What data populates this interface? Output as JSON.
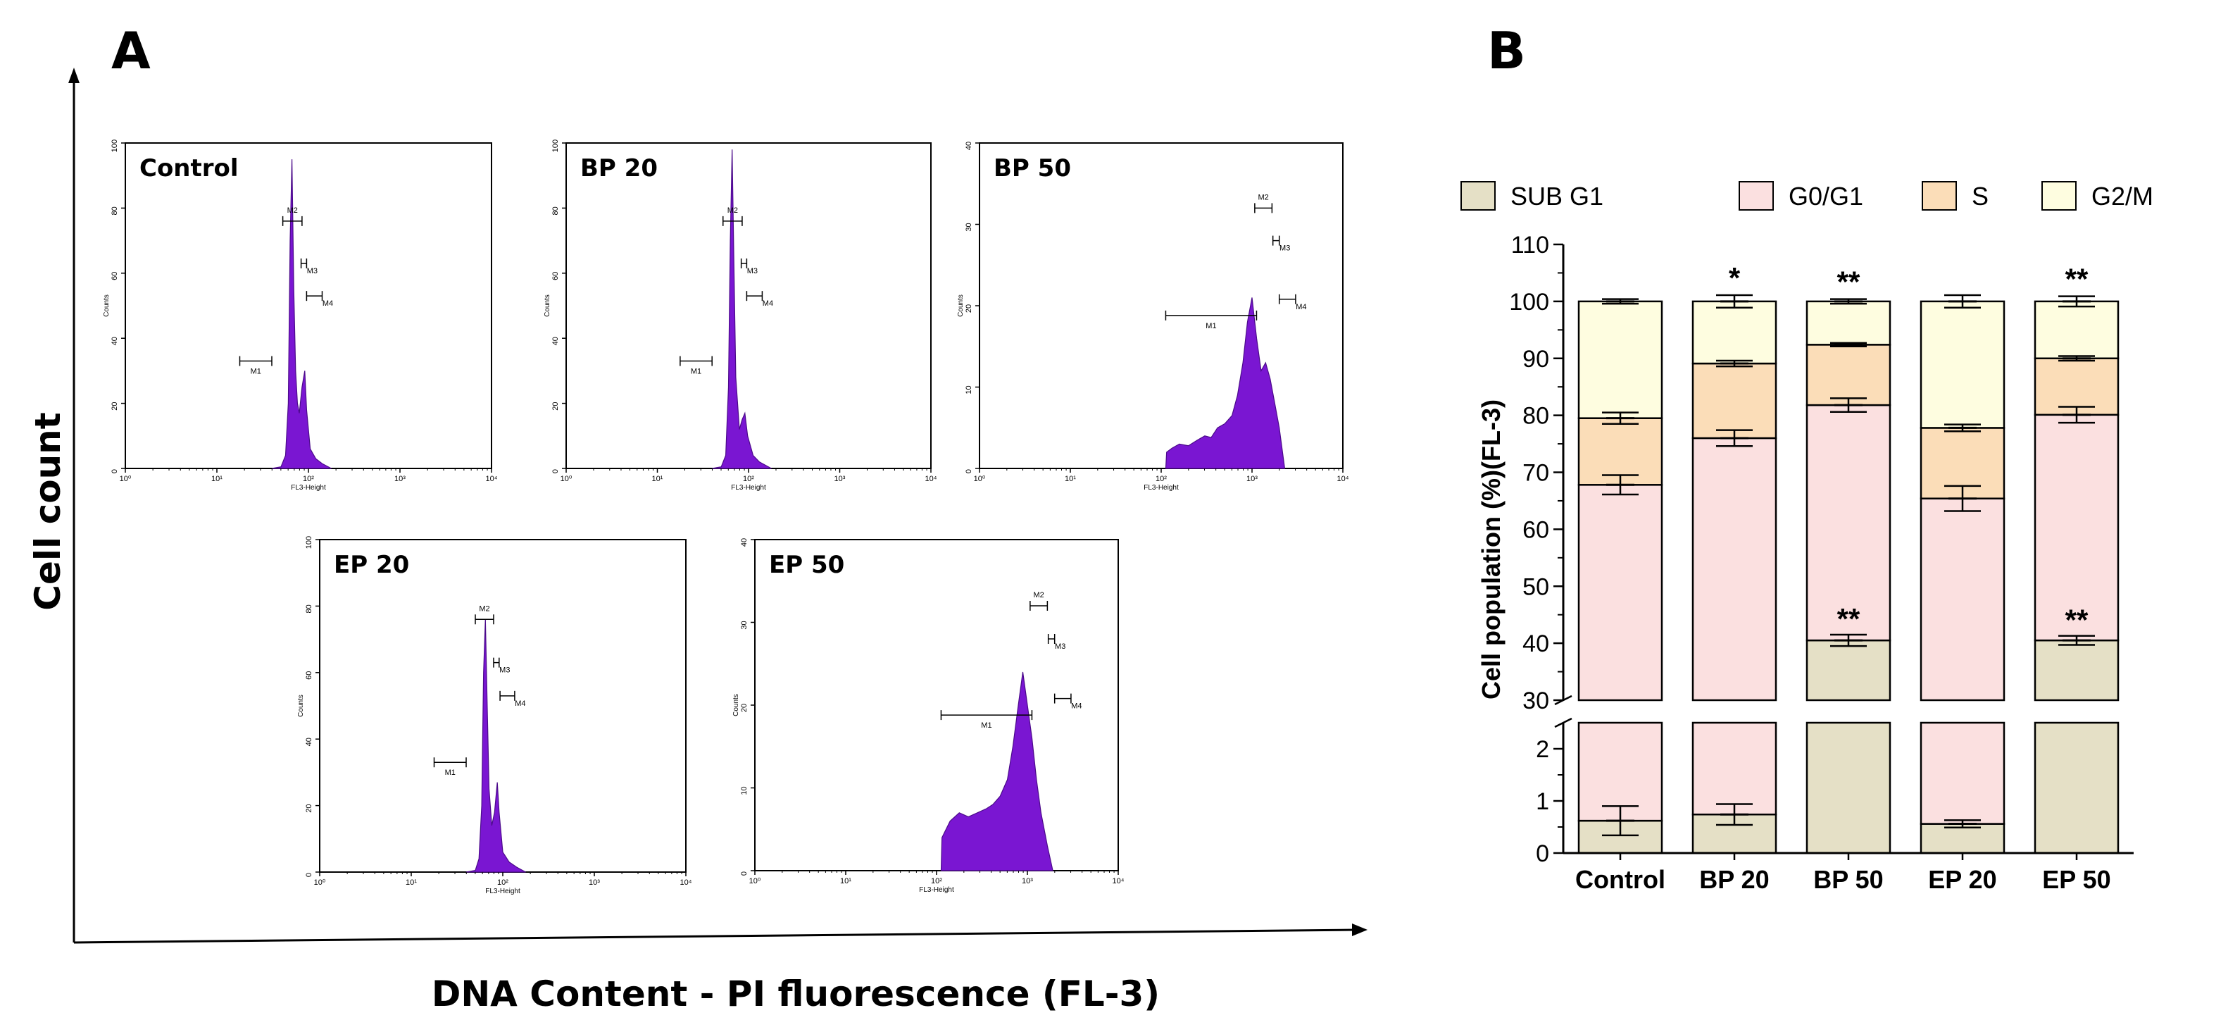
{
  "panel_a": {
    "letter": "A",
    "y_axis_title": "Cell count",
    "x_axis_title": "DNA Content - PI fluorescence (FL-3)",
    "x_tick_labels": [
      "10⁰",
      "10¹",
      "10²",
      "10³",
      "10⁴"
    ],
    "x_axis_name": "FL3-Height",
    "y_axis_name": "Counts",
    "marker_labels": [
      "M1",
      "M2",
      "M3",
      "M4"
    ],
    "histograms": [
      {
        "title": "Control",
        "y_ticks": [
          "0",
          "20",
          "40",
          "60",
          "80",
          "100"
        ],
        "y_max": 100,
        "profile": [
          [
            1.6,
            0
          ],
          [
            1.7,
            0.5
          ],
          [
            1.75,
            4
          ],
          [
            1.78,
            20
          ],
          [
            1.8,
            70
          ],
          [
            1.82,
            95
          ],
          [
            1.84,
            55
          ],
          [
            1.86,
            30
          ],
          [
            1.88,
            20
          ],
          [
            1.9,
            17
          ],
          [
            1.93,
            25
          ],
          [
            1.96,
            30
          ],
          [
            1.98,
            18
          ],
          [
            2.02,
            6
          ],
          [
            2.08,
            3
          ],
          [
            2.15,
            1.5
          ],
          [
            2.25,
            0
          ]
        ]
      },
      {
        "title": "BP 20",
        "y_ticks": [
          "0",
          "20",
          "40",
          "60",
          "80",
          "100"
        ],
        "y_max": 100,
        "profile": [
          [
            1.6,
            0
          ],
          [
            1.7,
            0.5
          ],
          [
            1.75,
            4
          ],
          [
            1.78,
            25
          ],
          [
            1.8,
            70
          ],
          [
            1.82,
            98
          ],
          [
            1.84,
            62
          ],
          [
            1.86,
            28
          ],
          [
            1.9,
            12
          ],
          [
            1.93,
            15
          ],
          [
            1.96,
            17
          ],
          [
            1.99,
            10
          ],
          [
            2.05,
            4
          ],
          [
            2.12,
            2
          ],
          [
            2.25,
            0
          ]
        ]
      },
      {
        "title": "BP 50",
        "y_ticks": [
          "0",
          "10",
          "20",
          "30",
          "40"
        ],
        "y_max": 40,
        "profile": [
          [
            2.05,
            0
          ],
          [
            2.06,
            2
          ],
          [
            2.12,
            2.5
          ],
          [
            2.2,
            3
          ],
          [
            2.3,
            2.8
          ],
          [
            2.4,
            3.5
          ],
          [
            2.48,
            4
          ],
          [
            2.55,
            3.8
          ],
          [
            2.62,
            5
          ],
          [
            2.7,
            5.5
          ],
          [
            2.78,
            6.5
          ],
          [
            2.84,
            9
          ],
          [
            2.9,
            13
          ],
          [
            2.95,
            18
          ],
          [
            3.0,
            21
          ],
          [
            3.05,
            16
          ],
          [
            3.1,
            12
          ],
          [
            3.15,
            13
          ],
          [
            3.2,
            11
          ],
          [
            3.25,
            8
          ],
          [
            3.3,
            5
          ],
          [
            3.36,
            0
          ]
        ]
      },
      {
        "title": "EP 20",
        "y_ticks": [
          "0",
          "20",
          "40",
          "60",
          "80",
          "100"
        ],
        "y_max": 100,
        "profile": [
          [
            1.6,
            0
          ],
          [
            1.7,
            0.5
          ],
          [
            1.74,
            4
          ],
          [
            1.77,
            20
          ],
          [
            1.79,
            60
          ],
          [
            1.81,
            76
          ],
          [
            1.83,
            50
          ],
          [
            1.85,
            25
          ],
          [
            1.88,
            14
          ],
          [
            1.91,
            18
          ],
          [
            1.94,
            27
          ],
          [
            1.96,
            18
          ],
          [
            2.0,
            6
          ],
          [
            2.07,
            3
          ],
          [
            2.15,
            1.5
          ],
          [
            2.25,
            0
          ]
        ]
      },
      {
        "title": "EP 50",
        "y_ticks": [
          "0",
          "10",
          "20",
          "30",
          "40"
        ],
        "y_max": 40,
        "profile": [
          [
            2.05,
            0
          ],
          [
            2.06,
            4
          ],
          [
            2.15,
            6
          ],
          [
            2.25,
            7
          ],
          [
            2.35,
            6.5
          ],
          [
            2.45,
            7
          ],
          [
            2.55,
            7.5
          ],
          [
            2.62,
            8
          ],
          [
            2.7,
            9
          ],
          [
            2.78,
            11
          ],
          [
            2.84,
            15
          ],
          [
            2.9,
            20
          ],
          [
            2.95,
            24
          ],
          [
            3.0,
            20
          ],
          [
            3.05,
            16
          ],
          [
            3.1,
            11
          ],
          [
            3.15,
            7
          ],
          [
            3.22,
            3
          ],
          [
            3.28,
            0
          ]
        ]
      }
    ]
  },
  "panel_b": {
    "letter": "B"
  },
  "chart_data": {
    "type": "bar",
    "stacked": true,
    "title": "",
    "xlabel": "",
    "ylabel": "Cell population (%)(FL-3)",
    "categories": [
      "Control",
      "BP 20",
      "BP 50",
      "EP 20",
      "EP 50"
    ],
    "series": [
      {
        "name": "SUB G1",
        "color": "#e5e0c6",
        "values": [
          0.62,
          0.74,
          40.5,
          0.56,
          40.5
        ],
        "errors": [
          0.28,
          0.2,
          1.0,
          0.07,
          0.8
        ]
      },
      {
        "name": "G0/G1",
        "color": "#fbe0e0",
        "values": [
          67.18,
          75.26,
          41.3,
          64.84,
          39.6
        ],
        "errors": [
          1.7,
          1.4,
          1.2,
          2.2,
          1.4
        ]
      },
      {
        "name": "S",
        "color": "#fbddb8",
        "values": [
          11.7,
          13.1,
          10.6,
          12.4,
          9.9
        ],
        "errors": [
          1.0,
          0.5,
          0.3,
          0.6,
          0.4
        ]
      },
      {
        "name": "G2/M",
        "color": "#fefde0",
        "values": [
          20.5,
          10.9,
          7.6,
          22.2,
          10.0
        ],
        "errors": [
          0.4,
          1.1,
          0.4,
          1.1,
          0.9
        ]
      }
    ],
    "significance": [
      {
        "category": "BP 20",
        "position": "top",
        "label": "*"
      },
      {
        "category": "BP 50",
        "position": "top",
        "label": "**"
      },
      {
        "category": "EP 50",
        "position": "top",
        "label": "**"
      },
      {
        "category": "BP 50",
        "position": "sub_g1",
        "label": "**"
      },
      {
        "category": "EP 50",
        "position": "sub_g1",
        "label": "**"
      }
    ],
    "y_axis_lower": {
      "ylim": [
        0,
        2.5
      ],
      "ticks": [
        "0",
        "1",
        "2"
      ]
    },
    "y_axis_upper": {
      "ylim": [
        30,
        110
      ],
      "ticks": [
        "30",
        "40",
        "50",
        "60",
        "70",
        "80",
        "90",
        "100",
        "110"
      ]
    },
    "legend_position": "top"
  }
}
